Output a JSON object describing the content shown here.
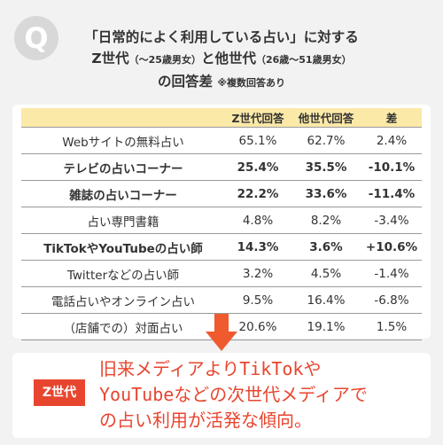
{
  "title": {
    "q_letter": "Q",
    "line1": "「日常的によく利用している占い」に対する",
    "line2_a": "Z世代",
    "line2_b": "（〜25歳男女）",
    "line2_c": "と他世代",
    "line2_d": "（26歳〜51歳男女）",
    "line3_a": "の回答差",
    "line3_note": "※複数回答あり"
  },
  "table": {
    "headers": [
      "",
      "Z世代回答",
      "他世代回答",
      "差"
    ]
  },
  "chart_data": {
    "type": "table",
    "columns": [
      "Z世代回答",
      "他世代回答",
      "差"
    ],
    "rows": [
      {
        "label": "Webサイトの無料占い",
        "z": "65.1%",
        "other": "62.7%",
        "diff": "2.4%",
        "bold": false,
        "diff_color": "normal"
      },
      {
        "label": "テレビの占いコーナー",
        "z": "25.4%",
        "other": "35.5%",
        "diff": "-10.1%",
        "bold": true,
        "diff_color": "red"
      },
      {
        "label": "雑誌の占いコーナー",
        "z": "22.2%",
        "other": "33.6%",
        "diff": "-11.4%",
        "bold": true,
        "diff_color": "red"
      },
      {
        "label": "占い専門書籍",
        "z": "4.8%",
        "other": "8.2%",
        "diff": "-3.4%",
        "bold": false,
        "diff_color": "normal"
      },
      {
        "label": "TikTokやYouTubeの占い師",
        "z": "14.3%",
        "other": "3.6%",
        "diff": "+10.6%",
        "bold": true,
        "diff_color": "blue"
      },
      {
        "label": "Twitterなどの占い師",
        "z": "3.2%",
        "other": "4.5%",
        "diff": "-1.4%",
        "bold": false,
        "diff_color": "normal"
      },
      {
        "label": "電話占いやオンライン占い",
        "z": "9.5%",
        "other": "16.4%",
        "diff": "-6.8%",
        "bold": false,
        "diff_color": "normal"
      },
      {
        "label": "（店舗での）対面占い",
        "z": "20.6%",
        "other": "19.1%",
        "diff": "1.5%",
        "bold": false,
        "diff_color": "normal"
      }
    ]
  },
  "conclusion": {
    "badge": "Z世代",
    "line1": "旧来メディアよりTikTokや",
    "line2": "YouTubeなどの次世代メディアで",
    "line3": "の占い利用が活発な傾向。"
  },
  "colors": {
    "background": "#f2f2f2",
    "header_fill": "#fbe9a8",
    "accent_red": "#e8452f",
    "accent_blue": "#3a6fd8",
    "arrow": "#ef5a2f"
  }
}
